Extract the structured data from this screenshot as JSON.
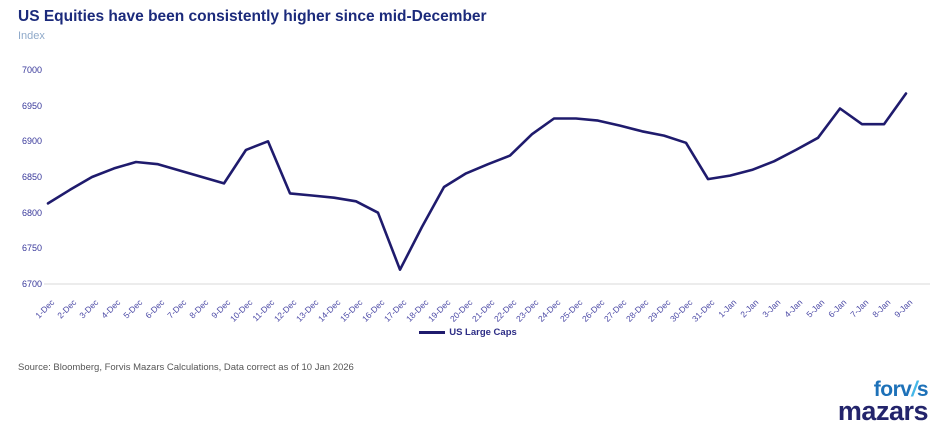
{
  "header": {
    "title": "US Equities have been consistently higher since mid-December",
    "subtitle": "Index"
  },
  "chart_data": {
    "type": "line",
    "title": "US Equities have been consistently higher since mid-December",
    "ylabel_unit": "Index",
    "categories": [
      "1-Dec",
      "2-Dec",
      "3-Dec",
      "4-Dec",
      "5-Dec",
      "6-Dec",
      "7-Dec",
      "8-Dec",
      "9-Dec",
      "10-Dec",
      "11-Dec",
      "12-Dec",
      "13-Dec",
      "14-Dec",
      "15-Dec",
      "16-Dec",
      "17-Dec",
      "18-Dec",
      "19-Dec",
      "20-Dec",
      "21-Dec",
      "22-Dec",
      "23-Dec",
      "24-Dec",
      "25-Dec",
      "26-Dec",
      "27-Dec",
      "28-Dec",
      "29-Dec",
      "30-Dec",
      "31-Dec",
      "1-Jan",
      "2-Jan",
      "3-Jan",
      "4-Jan",
      "5-Jan",
      "6-Jan",
      "7-Jan",
      "8-Jan",
      "9-Jan"
    ],
    "series": [
      {
        "name": "US Large Caps",
        "values": [
          6813,
          6832,
          6850,
          6862,
          6871,
          6868,
          6859,
          6850,
          6841,
          6888,
          6900,
          6827,
          6824,
          6821,
          6816,
          6800,
          6720,
          6780,
          6836,
          6855,
          6868,
          6880,
          6910,
          6932,
          6932,
          6929,
          6922,
          6914,
          6908,
          6898,
          6847,
          6852,
          6860,
          6872,
          6888,
          6905,
          6946,
          6924,
          6924,
          6967
        ]
      }
    ],
    "ylim": [
      6700,
      7000
    ],
    "yticks": [
      6700,
      6750,
      6800,
      6850,
      6900,
      6950,
      7000
    ],
    "grid": false,
    "legend_label": "US Large Caps",
    "legend_position": "bottom-center",
    "line_color": "#1f1b6d",
    "baseline_color": "#d9d9d9"
  },
  "footer": {
    "source": "Source: Bloomberg, Forvis Mazars Calculations, Data correct as of 10 Jan 2026"
  },
  "logo": {
    "top_part1": "forv",
    "top_slash": "/",
    "top_part2": "s",
    "bottom": "mazars"
  }
}
